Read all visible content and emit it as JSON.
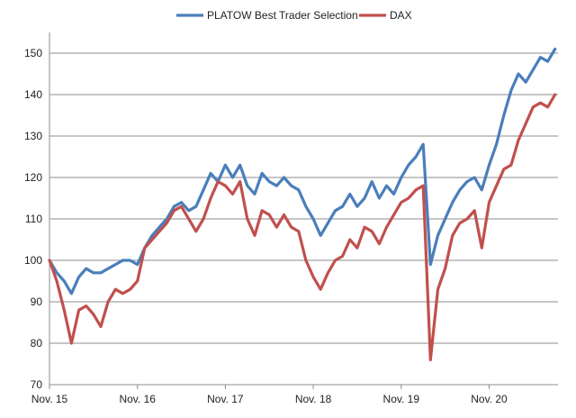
{
  "chart_data": {
    "type": "line",
    "title": "",
    "xlabel": "",
    "ylabel": "",
    "ylim": [
      70,
      155
    ],
    "y_ticks": [
      70,
      80,
      90,
      100,
      110,
      120,
      130,
      140,
      150
    ],
    "x_ticks": [
      "Nov. 15",
      "Nov. 16",
      "Nov. 17",
      "Nov. 18",
      "Nov. 19",
      "Nov. 20"
    ],
    "x_domain": [
      "2015-11",
      "2021-06"
    ],
    "grid": "horizontal",
    "legend_position": "top",
    "series": [
      {
        "name": "PLATOW Best Trader Selection",
        "color": "#4a7ebb",
        "points": [
          [
            "2015-11",
            100
          ],
          [
            "2015-12",
            97
          ],
          [
            "2016-01",
            95
          ],
          [
            "2016-02",
            92
          ],
          [
            "2016-03",
            96
          ],
          [
            "2016-04",
            98
          ],
          [
            "2016-05",
            97
          ],
          [
            "2016-06",
            97
          ],
          [
            "2016-07",
            98
          ],
          [
            "2016-08",
            99
          ],
          [
            "2016-09",
            100
          ],
          [
            "2016-10",
            100
          ],
          [
            "2016-11",
            99
          ],
          [
            "2016-12",
            103
          ],
          [
            "2017-01",
            106
          ],
          [
            "2017-02",
            108
          ],
          [
            "2017-03",
            110
          ],
          [
            "2017-04",
            113
          ],
          [
            "2017-05",
            114
          ],
          [
            "2017-06",
            112
          ],
          [
            "2017-07",
            113
          ],
          [
            "2017-08",
            117
          ],
          [
            "2017-09",
            121
          ],
          [
            "2017-10",
            119
          ],
          [
            "2017-11",
            123
          ],
          [
            "2017-12",
            120
          ],
          [
            "2018-01",
            123
          ],
          [
            "2018-02",
            118
          ],
          [
            "2018-03",
            116
          ],
          [
            "2018-04",
            121
          ],
          [
            "2018-05",
            119
          ],
          [
            "2018-06",
            118
          ],
          [
            "2018-07",
            120
          ],
          [
            "2018-08",
            118
          ],
          [
            "2018-09",
            117
          ],
          [
            "2018-10",
            113
          ],
          [
            "2018-11",
            110
          ],
          [
            "2018-12",
            106
          ],
          [
            "2019-01",
            109
          ],
          [
            "2019-02",
            112
          ],
          [
            "2019-03",
            113
          ],
          [
            "2019-04",
            116
          ],
          [
            "2019-05",
            113
          ],
          [
            "2019-06",
            115
          ],
          [
            "2019-07",
            119
          ],
          [
            "2019-08",
            115
          ],
          [
            "2019-09",
            118
          ],
          [
            "2019-10",
            116
          ],
          [
            "2019-11",
            120
          ],
          [
            "2019-12",
            123
          ],
          [
            "2020-01",
            125
          ],
          [
            "2020-02",
            128
          ],
          [
            "2020-03",
            99
          ],
          [
            "2020-04",
            106
          ],
          [
            "2020-05",
            110
          ],
          [
            "2020-06",
            114
          ],
          [
            "2020-07",
            117
          ],
          [
            "2020-08",
            119
          ],
          [
            "2020-09",
            120
          ],
          [
            "2020-10",
            117
          ],
          [
            "2020-11",
            123
          ],
          [
            "2020-12",
            128
          ],
          [
            "2021-01",
            135
          ],
          [
            "2021-02",
            141
          ],
          [
            "2021-03",
            145
          ],
          [
            "2021-04",
            143
          ],
          [
            "2021-05",
            146
          ],
          [
            "2021-06",
            149
          ],
          [
            "2021-07",
            148
          ],
          [
            "2021-08",
            151
          ]
        ]
      },
      {
        "name": "DAX",
        "color": "#c0504d",
        "points": [
          [
            "2015-11",
            100
          ],
          [
            "2015-12",
            95
          ],
          [
            "2016-01",
            88
          ],
          [
            "2016-02",
            80
          ],
          [
            "2016-03",
            88
          ],
          [
            "2016-04",
            89
          ],
          [
            "2016-05",
            87
          ],
          [
            "2016-06",
            84
          ],
          [
            "2016-07",
            90
          ],
          [
            "2016-08",
            93
          ],
          [
            "2016-09",
            92
          ],
          [
            "2016-10",
            93
          ],
          [
            "2016-11",
            95
          ],
          [
            "2016-12",
            103
          ],
          [
            "2017-01",
            105
          ],
          [
            "2017-02",
            107
          ],
          [
            "2017-03",
            109
          ],
          [
            "2017-04",
            112
          ],
          [
            "2017-05",
            113
          ],
          [
            "2017-06",
            110
          ],
          [
            "2017-07",
            107
          ],
          [
            "2017-08",
            110
          ],
          [
            "2017-09",
            115
          ],
          [
            "2017-10",
            119
          ],
          [
            "2017-11",
            118
          ],
          [
            "2017-12",
            116
          ],
          [
            "2018-01",
            119
          ],
          [
            "2018-02",
            110
          ],
          [
            "2018-03",
            106
          ],
          [
            "2018-04",
            112
          ],
          [
            "2018-05",
            111
          ],
          [
            "2018-06",
            108
          ],
          [
            "2018-07",
            111
          ],
          [
            "2018-08",
            108
          ],
          [
            "2018-09",
            107
          ],
          [
            "2018-10",
            100
          ],
          [
            "2018-11",
            96
          ],
          [
            "2018-12",
            93
          ],
          [
            "2019-01",
            97
          ],
          [
            "2019-02",
            100
          ],
          [
            "2019-03",
            101
          ],
          [
            "2019-04",
            105
          ],
          [
            "2019-05",
            103
          ],
          [
            "2019-06",
            108
          ],
          [
            "2019-07",
            107
          ],
          [
            "2019-08",
            104
          ],
          [
            "2019-09",
            108
          ],
          [
            "2019-10",
            111
          ],
          [
            "2019-11",
            114
          ],
          [
            "2019-12",
            115
          ],
          [
            "2020-01",
            117
          ],
          [
            "2020-02",
            118
          ],
          [
            "2020-03",
            76
          ],
          [
            "2020-04",
            93
          ],
          [
            "2020-05",
            98
          ],
          [
            "2020-06",
            106
          ],
          [
            "2020-07",
            109
          ],
          [
            "2020-08",
            110
          ],
          [
            "2020-09",
            112
          ],
          [
            "2020-10",
            103
          ],
          [
            "2020-11",
            114
          ],
          [
            "2020-12",
            118
          ],
          [
            "2021-01",
            122
          ],
          [
            "2021-02",
            123
          ],
          [
            "2021-03",
            129
          ],
          [
            "2021-04",
            133
          ],
          [
            "2021-05",
            137
          ],
          [
            "2021-06",
            138
          ],
          [
            "2021-07",
            137
          ],
          [
            "2021-08",
            140
          ]
        ]
      }
    ]
  }
}
